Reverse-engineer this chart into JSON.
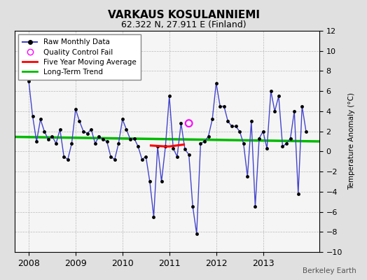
{
  "title": "VARKAUS KOSULANNIEMI",
  "subtitle": "62.322 N, 27.911 E (Finland)",
  "ylabel": "Temperature Anomaly (°C)",
  "credit": "Berkeley Earth",
  "ylim": [
    -10,
    12
  ],
  "yticks": [
    -10,
    -8,
    -6,
    -4,
    -2,
    0,
    2,
    4,
    6,
    8,
    10,
    12
  ],
  "xlim": [
    2007.7,
    2014.2
  ],
  "xticks": [
    2008,
    2009,
    2010,
    2011,
    2012,
    2013
  ],
  "bg_color": "#e0e0e0",
  "plot_bg_color": "#f5f5f5",
  "raw_monthly": {
    "x": [
      2008.0,
      2008.083,
      2008.167,
      2008.25,
      2008.333,
      2008.417,
      2008.5,
      2008.583,
      2008.667,
      2008.75,
      2008.833,
      2008.917,
      2009.0,
      2009.083,
      2009.167,
      2009.25,
      2009.333,
      2009.417,
      2009.5,
      2009.583,
      2009.667,
      2009.75,
      2009.833,
      2009.917,
      2010.0,
      2010.083,
      2010.167,
      2010.25,
      2010.333,
      2010.417,
      2010.5,
      2010.583,
      2010.667,
      2010.75,
      2010.833,
      2010.917,
      2011.0,
      2011.083,
      2011.167,
      2011.25,
      2011.333,
      2011.417,
      2011.5,
      2011.583,
      2011.667,
      2011.75,
      2011.833,
      2011.917,
      2012.0,
      2012.083,
      2012.167,
      2012.25,
      2012.333,
      2012.417,
      2012.5,
      2012.583,
      2012.667,
      2012.75,
      2012.833,
      2012.917,
      2013.0,
      2013.083,
      2013.167,
      2013.25,
      2013.333,
      2013.417,
      2013.5,
      2013.583,
      2013.667,
      2013.75,
      2013.833,
      2013.917
    ],
    "y": [
      7.0,
      3.5,
      1.0,
      3.2,
      2.0,
      1.2,
      1.5,
      0.8,
      2.2,
      -0.5,
      -0.8,
      0.8,
      4.2,
      3.0,
      2.0,
      1.8,
      2.2,
      0.8,
      1.5,
      1.2,
      1.0,
      -0.5,
      -0.8,
      0.8,
      3.2,
      2.2,
      1.2,
      1.3,
      0.5,
      -0.8,
      -0.5,
      -3.0,
      -6.5,
      0.5,
      -3.0,
      0.5,
      5.5,
      0.3,
      -0.5,
      2.8,
      0.2,
      -0.3,
      -5.5,
      -8.2,
      0.8,
      1.0,
      1.5,
      3.2,
      6.8,
      4.5,
      4.5,
      3.0,
      2.5,
      2.5,
      2.0,
      0.8,
      -2.5,
      3.0,
      -5.5,
      1.3,
      2.0,
      0.3,
      6.0,
      4.0,
      5.5,
      0.5,
      0.8,
      1.3,
      4.0,
      -4.2,
      4.5,
      2.0
    ],
    "color": "#4444cc",
    "linewidth": 1.0,
    "marker_color": "black",
    "marker_size": 3.5
  },
  "qc_fail": {
    "x": [
      2011.417
    ],
    "y": [
      2.8
    ],
    "color": "magenta",
    "marker_size": 7
  },
  "five_year_ma": {
    "x": [
      2010.583,
      2010.75,
      2010.917,
      2011.0,
      2011.083,
      2011.25,
      2011.333
    ],
    "y": [
      0.6,
      0.55,
      0.5,
      0.5,
      0.55,
      0.65,
      0.7
    ],
    "color": "red",
    "linewidth": 2.2
  },
  "long_term_trend": {
    "x": [
      2007.7,
      2014.2
    ],
    "y": [
      1.45,
      1.0
    ],
    "color": "#00bb00",
    "linewidth": 2.5
  },
  "legend": {
    "raw_label": "Raw Monthly Data",
    "qc_label": "Quality Control Fail",
    "ma_label": "Five Year Moving Average",
    "trend_label": "Long-Term Trend"
  }
}
